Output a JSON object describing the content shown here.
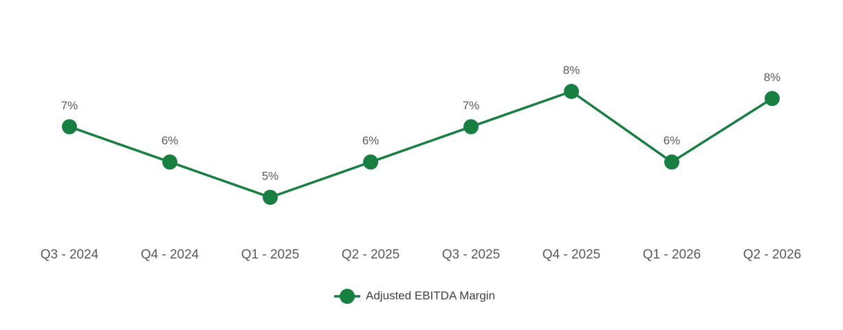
{
  "chart_data": {
    "type": "line",
    "categories": [
      "Q3 - 2024",
      "Q4 - 2024",
      "Q1 - 2025",
      "Q2 - 2025",
      "Q3 - 2025",
      "Q4 - 2025",
      "Q1 - 2026",
      "Q2 - 2026"
    ],
    "series": [
      {
        "name": "Adjusted EBITDA Margin",
        "color": "#178040",
        "values": [
          7,
          6,
          5,
          6,
          7,
          8,
          6,
          7.8
        ],
        "value_labels": [
          "7%",
          "6%",
          "5%",
          "6%",
          "7%",
          "8%",
          "6%",
          "8%"
        ]
      }
    ],
    "legend": "bottom"
  }
}
